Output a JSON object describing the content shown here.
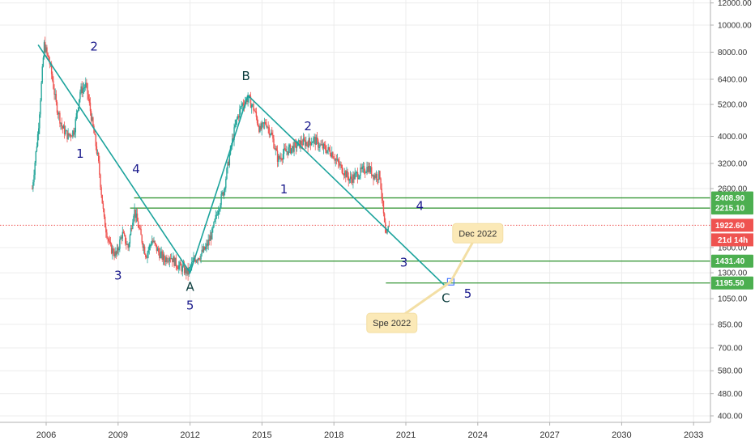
{
  "chart_data": {
    "type": "line",
    "title": "",
    "xlabel": "",
    "ylabel": "",
    "y_scale": "log",
    "grid": true,
    "xlim": [
      "2005-01-01",
      "2033-10-01"
    ],
    "ylim": [
      390,
      12000
    ],
    "x_ticks": [
      "2006",
      "2009",
      "2012",
      "2015",
      "2018",
      "2021",
      "2024",
      "2027",
      "2030",
      "2033"
    ],
    "y_ticks": [
      "400.00",
      "480.00",
      "580.00",
      "700.00",
      "850.00",
      "1050.00",
      "1300.00",
      "1600.00",
      "2600.00",
      "3200.00",
      "4000.00",
      "5200.00",
      "6400.00",
      "8000.00",
      "10000.00",
      "12000.00"
    ],
    "series": [
      {
        "type": "candlestick-approx",
        "x": [
          "2005-06",
          "2005-09",
          "2005-12",
          "2006-03",
          "2006-06",
          "2006-09",
          "2006-12",
          "2007-03",
          "2007-06",
          "2007-09",
          "2007-12",
          "2008-03",
          "2008-06",
          "2008-09",
          "2008-12",
          "2009-03",
          "2009-06",
          "2009-09",
          "2009-12",
          "2010-03",
          "2010-06",
          "2010-09",
          "2010-12",
          "2011-03",
          "2011-06",
          "2011-09",
          "2011-12",
          "2012-03",
          "2012-06",
          "2012-09",
          "2012-12",
          "2013-03",
          "2013-06",
          "2013-09",
          "2013-12",
          "2014-03",
          "2014-06",
          "2014-09",
          "2014-12",
          "2015-03",
          "2015-06",
          "2015-09",
          "2015-12",
          "2016-03",
          "2016-06",
          "2016-09",
          "2016-12",
          "2017-03",
          "2017-06",
          "2017-09",
          "2017-12",
          "2018-03",
          "2018-06",
          "2018-09",
          "2018-12",
          "2019-03",
          "2019-06",
          "2019-09",
          "2019-12",
          "2020-03",
          "2020-05"
        ],
        "values": [
          2600,
          4200,
          8500,
          7200,
          5200,
          4300,
          4000,
          4200,
          5800,
          6100,
          4500,
          3300,
          2000,
          1600,
          1500,
          1800,
          1600,
          2200,
          1800,
          1500,
          1700,
          1550,
          1450,
          1500,
          1400,
          1350,
          1300,
          1450,
          1500,
          1600,
          1800,
          2200,
          2600,
          3500,
          4500,
          5200,
          5500,
          5000,
          4200,
          4500,
          4000,
          3300,
          3500,
          3600,
          3700,
          3800,
          3800,
          3900,
          3700,
          3600,
          3500,
          3200,
          3000,
          2800,
          2900,
          3000,
          3100,
          2900,
          2900,
          1700,
          2000
        ]
      },
      {
        "name": "",
        "type": "trendline",
        "x": [
          "2005-09",
          "2012-01",
          "2014-06",
          "2022-09"
        ],
        "values": [
          8500,
          1300,
          5600,
          1160
        ]
      }
    ],
    "horizontal_levels": [
      {
        "value": 2408.9,
        "label": "2408.90",
        "start": "2009-09"
      },
      {
        "value": 2215.1,
        "label": "2215.10",
        "start": "2009-07"
      },
      {
        "value": 1431.4,
        "label": "1431.40",
        "start": "2012-06"
      },
      {
        "value": 1195.5,
        "label": "1195.50",
        "start": "2020-03"
      }
    ],
    "price_line": {
      "value": 1922.6,
      "label": "1922.60",
      "countdown": "21d 14h"
    },
    "wave_labels": [
      {
        "text": "2",
        "x": "2008-01",
        "y": 8100
      },
      {
        "text": "1",
        "x": "2007-06",
        "y": 3350
      },
      {
        "text": "4",
        "x": "2009-10",
        "y": 2950
      },
      {
        "text": "3",
        "x": "2009-01",
        "y": 1230
      },
      {
        "text": "A",
        "x": "2012-01",
        "y": 1120
      },
      {
        "text": "5",
        "x": "2012-01",
        "y": 960
      },
      {
        "text": "B",
        "x": "2014-05",
        "y": 6350
      },
      {
        "text": "2",
        "x": "2016-12",
        "y": 4200
      },
      {
        "text": "1",
        "x": "2015-12",
        "y": 2500
      },
      {
        "text": "4",
        "x": "2021-08",
        "y": 2180
      },
      {
        "text": "3",
        "x": "2020-12",
        "y": 1370
      },
      {
        "text": "C",
        "x": "2022-09",
        "y": 1020
      },
      {
        "text": "5",
        "x": "2023-08",
        "y": 1060
      }
    ],
    "callouts": [
      {
        "text": "Dec 2022",
        "x": "2024-01",
        "y": 1800
      },
      {
        "text": "Spe 2022",
        "x": "2020-06",
        "y": 860
      }
    ]
  }
}
